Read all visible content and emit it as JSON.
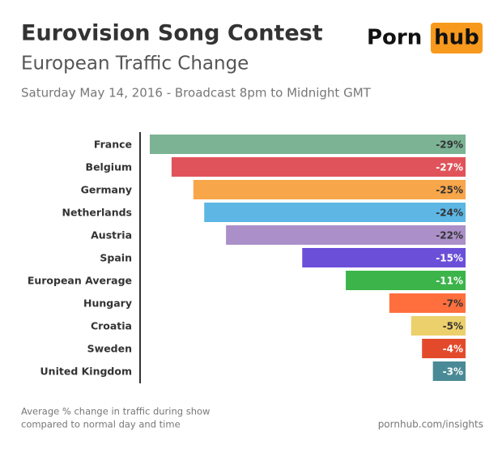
{
  "chart_data": {
    "type": "hbar",
    "title": "Eurovision Song Contest",
    "subtitle": "European Traffic Change",
    "date": "Saturday May 14, 2016 - Broadcast 8pm to Midnight GMT",
    "brand": {
      "left": "Porn",
      "right": "hub"
    },
    "categories": [
      "France",
      "Belgium",
      "Germany",
      "Netherlands",
      "Austria",
      "Spain",
      "European Average",
      "Hungary",
      "Croatia",
      "Sweden",
      "United Kingdom"
    ],
    "values": [
      -29,
      -27,
      -25,
      -24,
      -22,
      -15,
      -11,
      -7,
      -5,
      -4,
      -3
    ],
    "value_labels": [
      "-29%",
      "-27%",
      "-25%",
      "-24%",
      "-22%",
      "-15%",
      "-11%",
      "-7%",
      "-5%",
      "-4%",
      "-3%"
    ],
    "colors": [
      "#7bb394",
      "#e0535a",
      "#f8a64a",
      "#5db6e4",
      "#ab8fc8",
      "#6b4fd9",
      "#3cb44a",
      "#ff6f3d",
      "#ecd06b",
      "#e34a2c",
      "#4a8a96"
    ],
    "label_colors": [
      "#333333",
      "#ffffff",
      "#333333",
      "#333333",
      "#333333",
      "#ffffff",
      "#ffffff",
      "#333333",
      "#333333",
      "#ffffff",
      "#ffffff"
    ],
    "note": [
      "Average % change in traffic during show",
      "compared to normal day and time"
    ],
    "source": "pornhub.com/insights"
  }
}
